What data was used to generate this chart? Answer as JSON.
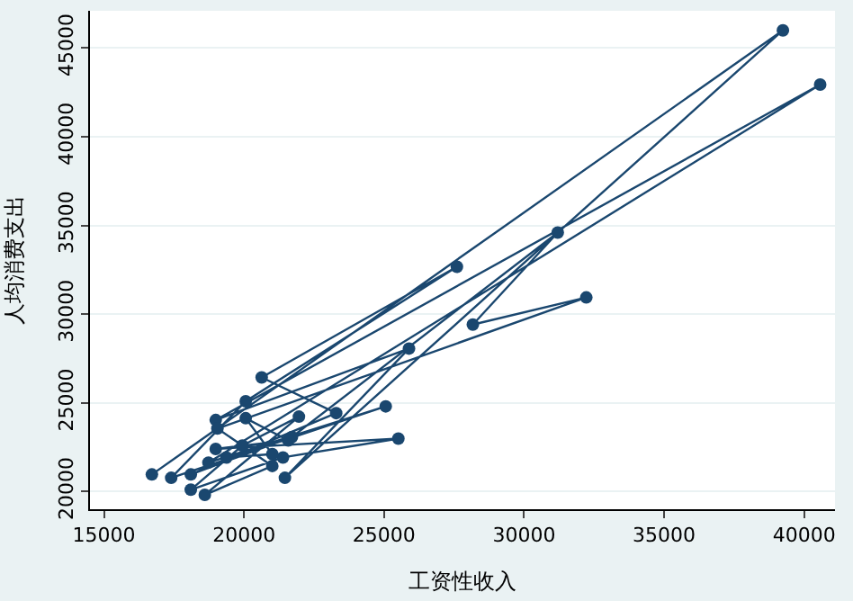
{
  "chart_data": {
    "type": "line",
    "xlabel": "工资性收入",
    "ylabel": "人均消费支出",
    "x": [
      16710,
      39240,
      21460,
      25890,
      18990,
      40570,
      18730,
      25060,
      17400,
      20060,
      27600,
      20630,
      23290,
      18100,
      21710,
      31200,
      28170,
      32220,
      19050,
      21010,
      18600,
      21960,
      19940,
      18100,
      21390,
      25510,
      18990,
      21580,
      20060,
      21010,
      19370
    ],
    "series": [
      {
        "color": "#1a476f",
        "values": [
          20960,
          46000,
          20770,
          28060,
          24030,
          42940,
          21630,
          24800,
          20770,
          25090,
          32670,
          26430,
          24420,
          20960,
          23070,
          34600,
          29410,
          30940,
          23550,
          21440,
          19810,
          24220,
          22590,
          20100,
          21920,
          22980,
          22400,
          22880,
          24130,
          22110,
          21920
        ]
      }
    ],
    "xlim": [
      14500,
      41100
    ],
    "ylim": [
      19000,
      47100
    ],
    "xticks": [
      15000,
      20000,
      25000,
      30000,
      35000,
      40000
    ],
    "yticks": [
      20000,
      25000,
      30000,
      35000,
      40000,
      45000
    ],
    "grid": "y",
    "marker": "circle",
    "line_style": "solid"
  }
}
